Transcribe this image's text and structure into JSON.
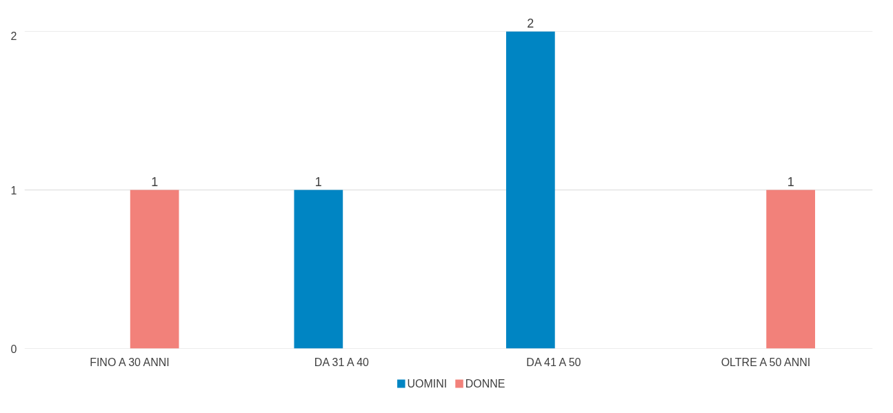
{
  "chart_data": {
    "type": "bar",
    "categories": [
      "FINO A 30 ANNI",
      "DA 31 A 40",
      "DA 41 A 50",
      "OLTRE A 50 ANNI"
    ],
    "series": [
      {
        "name": "UOMINI",
        "color": "#0085c3",
        "values": [
          null,
          1,
          2,
          null
        ]
      },
      {
        "name": "DONNE",
        "color": "#f2817a",
        "values": [
          1,
          null,
          null,
          1
        ]
      }
    ],
    "ylim": [
      0,
      2
    ],
    "yticks": [
      0,
      1,
      2
    ],
    "grid": "y",
    "legend": "bottom",
    "data_labels": true
  }
}
